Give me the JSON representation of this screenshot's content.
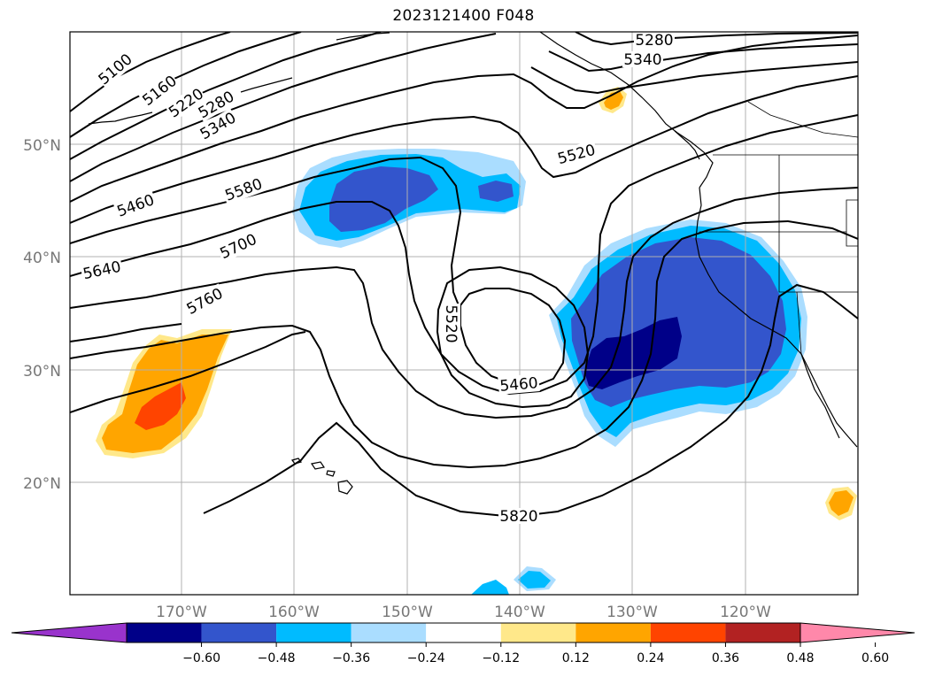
{
  "map": {
    "title": "2023121400 F048",
    "lat_labels": [
      "50°N",
      "40°N",
      "30°N",
      "20°N"
    ],
    "lon_labels": [
      "170°W",
      "160°W",
      "150°W",
      "140°W",
      "130°W",
      "120°W"
    ],
    "contour_labels": [
      "5100",
      "5160",
      "5220",
      "5280",
      "5340",
      "5280",
      "5340",
      "5460",
      "5580",
      "5520",
      "5640",
      "5700",
      "5760",
      "5520",
      "5460",
      "5820"
    ],
    "fill_colors": {
      "purple": "#9933cc",
      "navy": "#000088",
      "royal_blue": "#3355cc",
      "sky_blue": "#00bbff",
      "light_blue": "#aaddff",
      "pale_yellow": "#ffe88a",
      "orange": "#ffa500",
      "red_orange": "#ff4400",
      "dark_red": "#b22222",
      "pink": "#ff88aa"
    },
    "contour_color": "#000000",
    "gridlines": true
  },
  "colorbar": {
    "ticks": [
      "−0.60",
      "−0.48",
      "−0.36",
      "−0.24",
      "−0.12",
      "0.12",
      "0.24",
      "0.36",
      "0.48",
      "0.60"
    ],
    "colors": [
      "#9933cc",
      "#000088",
      "#3355cc",
      "#00bbff",
      "#aaddff",
      "#ffffff",
      "#ffe88a",
      "#ffa500",
      "#ff4400",
      "#b22222",
      "#ff88aa"
    ]
  }
}
